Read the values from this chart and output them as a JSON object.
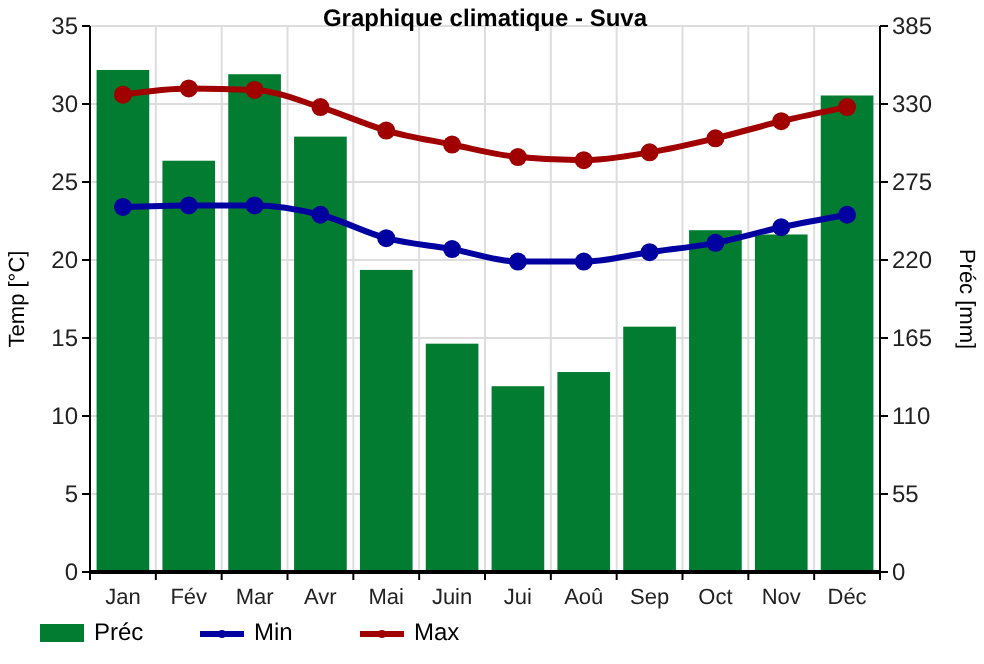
{
  "chart_data": {
    "type": "bar",
    "title": "Graphique climatique - Suva",
    "ylabel": "Temp [°C]",
    "y2label": "Préc [mm]",
    "categories": [
      "Jan",
      "Fév",
      "Mar",
      "Avr",
      "Mai",
      "Juin",
      "Jui",
      "Aoû",
      "Sep",
      "Oct",
      "Nov",
      "Déc"
    ],
    "series": [
      {
        "name": "Préc",
        "axis": "y2",
        "color": "#027c31",
        "values": [
          354,
          290,
          351,
          307,
          213,
          161,
          131,
          141,
          173,
          241,
          238,
          336
        ]
      },
      {
        "name": "Min",
        "type": "line",
        "color": "#0000a0",
        "values": [
          23.4,
          23.5,
          23.5,
          22.9,
          21.4,
          20.7,
          19.9,
          19.9,
          20.5,
          21.1,
          22.1,
          22.9
        ]
      },
      {
        "name": "Max",
        "type": "line",
        "color": "#a00000",
        "values": [
          30.6,
          31.0,
          30.9,
          29.8,
          28.3,
          27.4,
          26.6,
          26.4,
          26.9,
          27.8,
          28.9,
          29.8
        ]
      }
    ],
    "ylim": [
      0,
      35
    ],
    "yticks": [
      0,
      5,
      10,
      15,
      20,
      25,
      30,
      35
    ],
    "y2lim": [
      0,
      385
    ],
    "y2ticks": [
      0,
      55,
      110,
      165,
      220,
      275,
      330,
      385
    ],
    "grid": true,
    "legend": "bottom left",
    "marker": "circle"
  }
}
